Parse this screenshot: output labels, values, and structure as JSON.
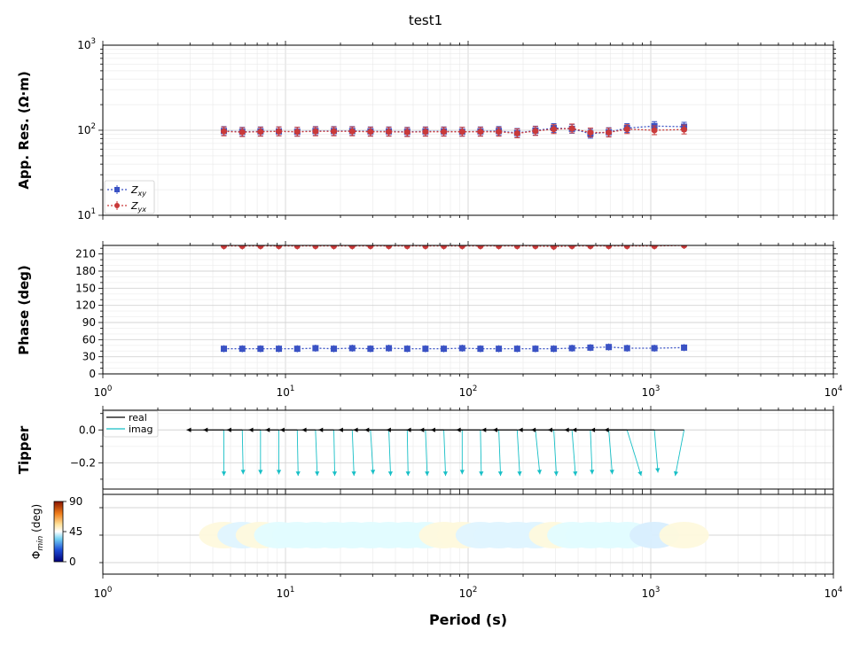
{
  "figure": {
    "title": "test1",
    "xlabel": "Period (s)",
    "x_ticks": [
      {
        "base": "10",
        "exp": "0"
      },
      {
        "base": "10",
        "exp": "1"
      },
      {
        "base": "10",
        "exp": "2"
      },
      {
        "base": "10",
        "exp": "3"
      },
      {
        "base": "10",
        "exp": "4"
      }
    ]
  },
  "chart_data": [
    {
      "id": "apparent-resistivity",
      "type": "scatter",
      "ylabel": "App. Res. (Ω·m)",
      "xscale": "log",
      "yscale": "log",
      "xlim": [
        1,
        10000
      ],
      "ylim": [
        10,
        1000
      ],
      "grid": true,
      "legend_position": "lower-left",
      "y_ticks": [
        {
          "base": "10",
          "exp": "1"
        },
        {
          "base": "10",
          "exp": "2"
        },
        {
          "base": "10",
          "exp": "3"
        }
      ],
      "x": [
        4.6,
        5.8,
        7.3,
        9.2,
        11.6,
        14.6,
        18.4,
        23.2,
        29.2,
        36.8,
        46.4,
        58.4,
        73.6,
        92.8,
        116.8,
        147.2,
        185.6,
        233.6,
        294.4,
        370.4,
        467.2,
        588.8,
        741.6,
        1047,
        1522
      ],
      "series": [
        {
          "name": "Z_xy",
          "name_main": "Z",
          "name_sub": "xy",
          "color": "#3a52c4",
          "marker": "square",
          "values": [
            98,
            96,
            97,
            97,
            96,
            98,
            98,
            98,
            97,
            97,
            96,
            97,
            97,
            96,
            97,
            98,
            93,
            99,
            106,
            104,
            91,
            95,
            106,
            112,
            110
          ]
        },
        {
          "name": "Z_yx",
          "name_main": "Z",
          "name_sub": "yx",
          "color": "#c93a3a",
          "marker": "circle",
          "values": [
            97,
            95,
            96,
            97,
            96,
            97,
            97,
            97,
            96,
            96,
            95,
            96,
            96,
            96,
            96,
            96,
            92,
            98,
            103,
            105,
            94,
            94,
            103,
            100,
            102
          ]
        }
      ]
    },
    {
      "id": "phase",
      "type": "scatter",
      "ylabel": "Phase (deg)",
      "xscale": "log",
      "xlim": [
        1,
        10000
      ],
      "ylim": [
        0,
        225
      ],
      "grid": true,
      "y_ticks": [
        "0",
        "30",
        "60",
        "90",
        "120",
        "150",
        "180",
        "210"
      ],
      "x_ticks": [
        {
          "base": "10",
          "exp": "0"
        },
        {
          "base": "10",
          "exp": "1"
        },
        {
          "base": "10",
          "exp": "2"
        },
        {
          "base": "10",
          "exp": "3"
        },
        {
          "base": "10",
          "exp": "4"
        }
      ],
      "x": [
        4.6,
        5.8,
        7.3,
        9.2,
        11.6,
        14.6,
        18.4,
        23.2,
        29.2,
        36.8,
        46.4,
        58.4,
        73.6,
        92.8,
        116.8,
        147.2,
        185.6,
        233.6,
        294.4,
        370.4,
        467.2,
        588.8,
        741.6,
        1047,
        1522
      ],
      "series": [
        {
          "name": "Z_xy",
          "color": "#3a52c4",
          "marker": "square",
          "values": [
            44,
            44,
            44,
            44,
            44,
            45,
            44,
            45,
            44,
            45,
            44,
            44,
            44,
            45,
            44,
            44,
            44,
            44,
            44,
            45,
            46,
            47,
            45,
            45,
            46
          ]
        },
        {
          "name": "Z_yx",
          "color": "#c93a3a",
          "marker": "circle",
          "values": [
            224,
            224,
            224,
            224,
            224,
            224,
            224,
            224,
            224,
            224,
            224,
            224,
            224,
            224,
            224,
            224,
            224,
            224,
            223,
            224,
            224,
            224,
            224,
            224,
            225
          ]
        }
      ]
    },
    {
      "id": "tipper",
      "type": "scatter",
      "ylabel": "Tipper",
      "xscale": "log",
      "xlim": [
        1,
        10000
      ],
      "ylim": [
        -0.36,
        0.12
      ],
      "grid": true,
      "legend_position": "upper-left",
      "legend": [
        {
          "label": "real",
          "color": "#000000"
        },
        {
          "label": "imag",
          "color": "#17bfc6"
        }
      ],
      "y_ticks": [
        "0.0",
        "−0.2"
      ],
      "y_tick_values": [
        0.0,
        -0.2
      ],
      "x": [
        4.6,
        5.8,
        7.3,
        9.2,
        11.6,
        14.6,
        18.4,
        23.2,
        29.2,
        36.8,
        46.4,
        58.4,
        73.6,
        92.8,
        116.8,
        147.2,
        185.6,
        233.6,
        294.4,
        370.4,
        467.2,
        588.8,
        741.6,
        1047,
        1522
      ],
      "real_dx": [
        -42,
        -44,
        -38,
        -34,
        -36,
        -40,
        -36,
        -38,
        -36,
        -40,
        -48,
        -44,
        -42,
        -48,
        -56,
        -48,
        -40,
        -48,
        -40,
        -46,
        -48,
        -50,
        -62,
        -72,
        -90
      ],
      "real_dy": [
        0,
        0,
        0,
        0,
        0,
        0,
        0,
        0,
        0,
        0,
        0,
        0,
        0,
        0,
        0,
        0,
        0,
        0,
        0,
        0,
        0,
        0,
        0,
        0,
        0
      ],
      "imag_dx": [
        0,
        1,
        0,
        0,
        1,
        2,
        1,
        2,
        3,
        2,
        1,
        2,
        2,
        0,
        1,
        2,
        3,
        5,
        3,
        4,
        2,
        4,
        16,
        4,
        -10
      ],
      "imag_dy": [
        -0.28,
        -0.27,
        -0.27,
        -0.27,
        -0.28,
        -0.28,
        -0.28,
        -0.28,
        -0.27,
        -0.28,
        -0.28,
        -0.28,
        -0.28,
        -0.27,
        -0.28,
        -0.28,
        -0.28,
        -0.27,
        -0.28,
        -0.28,
        -0.27,
        -0.27,
        -0.28,
        -0.26,
        -0.28
      ]
    },
    {
      "id": "phase-tensor",
      "type": "scatter",
      "colorbar_label": "Φ_min (deg)",
      "colorbar_label_main": "Φ",
      "colorbar_label_sub": "min",
      "colorbar_label_rest": " (deg)",
      "colorbar_range": [
        0,
        90
      ],
      "colorbar_ticks": [
        "0",
        "45",
        "90"
      ],
      "x_ticks": [
        {
          "base": "10",
          "exp": "0"
        },
        {
          "base": "10",
          "exp": "1"
        },
        {
          "base": "10",
          "exp": "2"
        },
        {
          "base": "10",
          "exp": "3"
        },
        {
          "base": "10",
          "exp": "4"
        }
      ],
      "xscale": "log",
      "xlim": [
        1,
        10000
      ],
      "grid": true,
      "x": [
        4.6,
        5.8,
        7.3,
        9.2,
        11.6,
        14.6,
        18.4,
        23.2,
        29.2,
        36.8,
        46.4,
        58.4,
        73.6,
        92.8,
        116.8,
        147.2,
        185.6,
        233.6,
        294.4,
        370.4,
        467.2,
        588.8,
        741.6,
        1047,
        1522
      ],
      "phimin": [
        52,
        40,
        52,
        44,
        44,
        44,
        44,
        44,
        44,
        44,
        44,
        44,
        52,
        52,
        40,
        40,
        40,
        40,
        52,
        44,
        44,
        44,
        44,
        38,
        52
      ],
      "colors": [
        "#fef9dd",
        "#dff4ff",
        "#fef9dd",
        "#e2fcff",
        "#e2fcff",
        "#e2fcff",
        "#e2fcff",
        "#e2fcff",
        "#e2fcff",
        "#e2fcff",
        "#e2fcff",
        "#e2fcff",
        "#fef9dd",
        "#fef9dd",
        "#dff4ff",
        "#dff4ff",
        "#dff4ff",
        "#dff4ff",
        "#fef9dd",
        "#e2fcff",
        "#e2fcff",
        "#e2fcff",
        "#e2fcff",
        "#d8eefe",
        "#fef9dd"
      ]
    }
  ]
}
